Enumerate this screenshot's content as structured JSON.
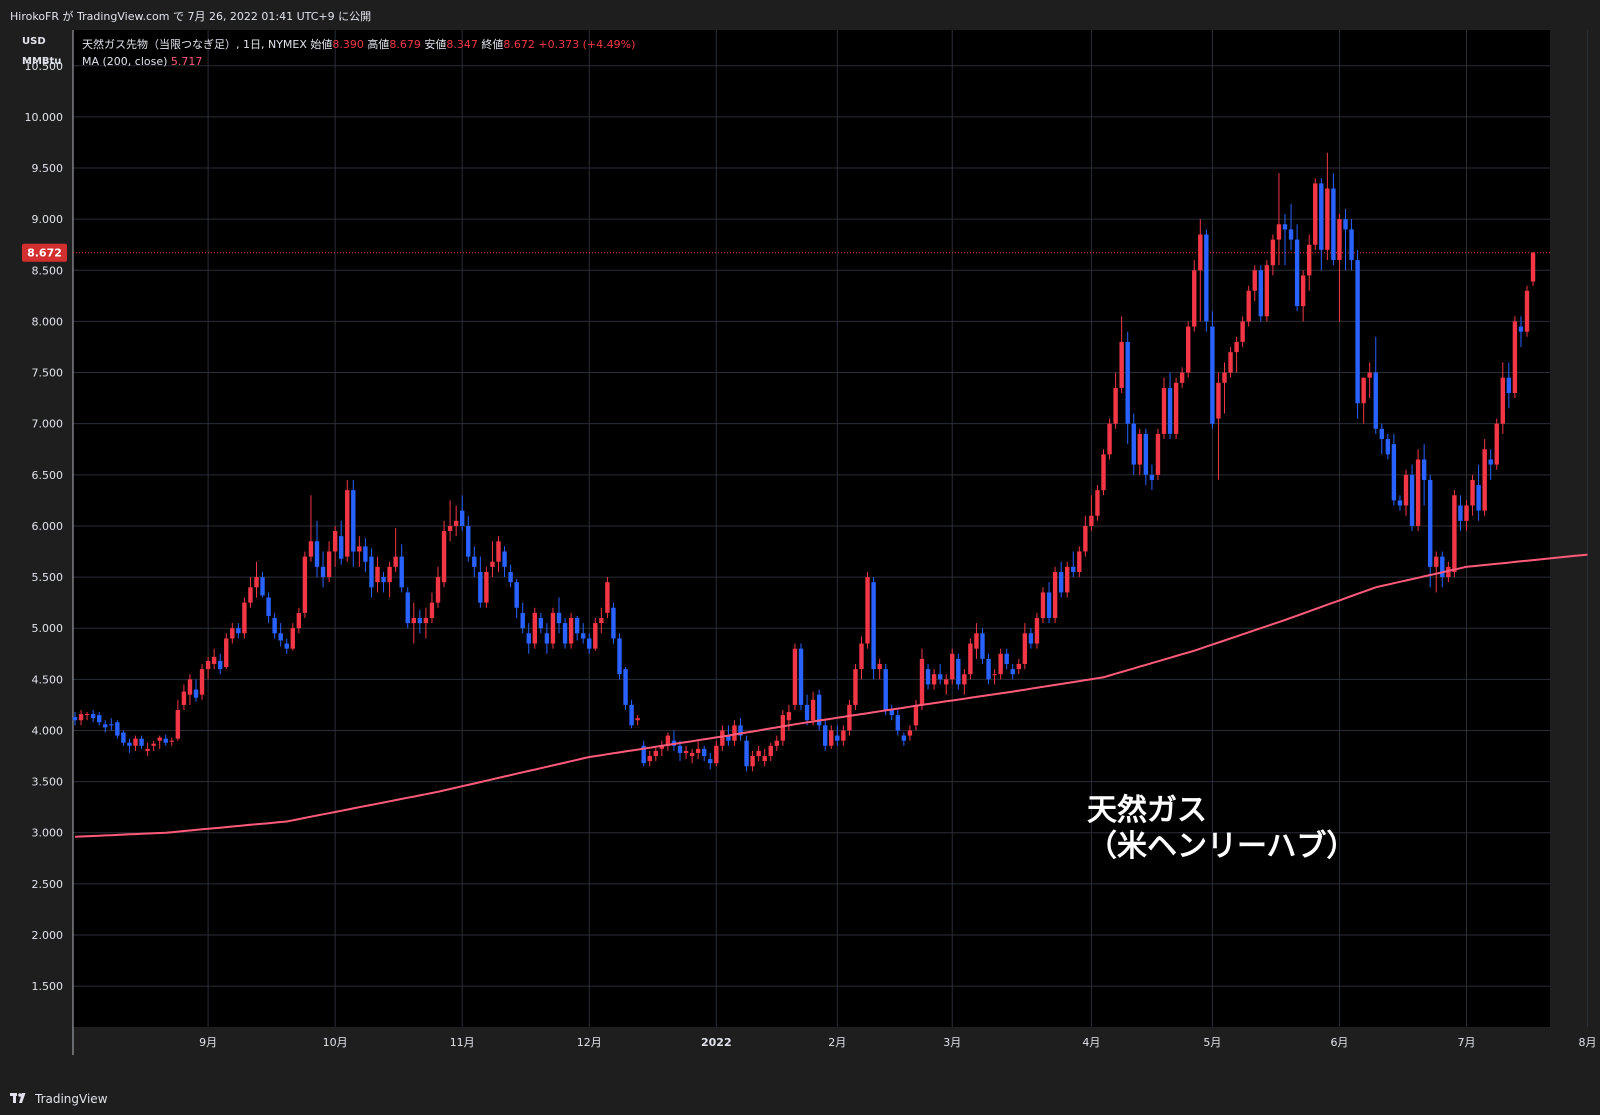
{
  "header": {
    "publish_line": "HirokoFR が TradingView.com で 7月 26, 2022 01:41 UTC+9 に公開"
  },
  "axis_units": {
    "line1": "USD",
    "line2": "MMBtu"
  },
  "legend": {
    "symbol": "天然ガス先物（当限つなぎ足）, 1日, NYMEX",
    "open_label": "始値",
    "open_value": "8.390",
    "high_label": "高値",
    "high_value": "8.679",
    "low_label": "安値",
    "low_value": "8.347",
    "close_label": "終値",
    "close_value": "8.672",
    "change": "+0.373 (+4.49%)",
    "ma_label": "MA (200, close)",
    "ma_value": "5.717"
  },
  "overlay": {
    "line1": "天然ガス",
    "line2": "（米ヘンリーハブ）"
  },
  "footer": {
    "brand": "TradingView"
  },
  "colors": {
    "background": "#000000",
    "frame": "#1e1e1e",
    "grid": "#2a2e39",
    "up": "#f23645",
    "down": "#2962ff",
    "ma": "#ff5a7a",
    "text": "#d1d4dc"
  },
  "chart_data": {
    "type": "candlestick",
    "ylim": [
      1.1,
      10.85
    ],
    "y_ticks": [
      "10.500",
      "10.000",
      "9.500",
      "9.000",
      "8.500",
      "8.000",
      "7.500",
      "7.000",
      "6.500",
      "6.000",
      "5.500",
      "5.000",
      "4.500",
      "4.000",
      "3.500",
      "3.000",
      "2.500",
      "2.000",
      "1.500"
    ],
    "x_ticks": [
      {
        "label": "9月",
        "i": 22
      },
      {
        "label": "10月",
        "i": 43
      },
      {
        "label": "11月",
        "i": 64
      },
      {
        "label": "12月",
        "i": 85
      },
      {
        "label": "2022",
        "i": 106
      },
      {
        "label": "2月",
        "i": 126
      },
      {
        "label": "3月",
        "i": 145
      },
      {
        "label": "4月",
        "i": 168
      },
      {
        "label": "5月",
        "i": 188
      },
      {
        "label": "6月",
        "i": 209
      },
      {
        "label": "7月",
        "i": 230
      },
      {
        "label": "8月",
        "i": 250
      }
    ],
    "current_price": "8.672",
    "candles": [
      [
        4.13,
        4.18,
        4.05,
        4.1
      ],
      [
        4.1,
        4.2,
        4.05,
        4.16
      ],
      [
        4.15,
        4.18,
        4.1,
        4.16
      ],
      [
        4.16,
        4.2,
        4.08,
        4.12
      ],
      [
        4.15,
        4.18,
        4.05,
        4.08
      ],
      [
        4.06,
        4.1,
        3.98,
        4.03
      ],
      [
        4.06,
        4.12,
        4.0,
        4.05
      ],
      [
        4.08,
        4.1,
        3.92,
        3.95
      ],
      [
        3.98,
        4.0,
        3.85,
        3.88
      ],
      [
        3.88,
        3.92,
        3.78,
        3.85
      ],
      [
        3.85,
        3.95,
        3.8,
        3.92
      ],
      [
        3.92,
        3.95,
        3.82,
        3.85
      ],
      [
        3.8,
        3.88,
        3.75,
        3.82
      ],
      [
        3.85,
        3.9,
        3.8,
        3.87
      ],
      [
        3.9,
        3.95,
        3.82,
        3.93
      ],
      [
        3.92,
        3.96,
        3.85,
        3.88
      ],
      [
        3.9,
        3.93,
        3.85,
        3.9
      ],
      [
        3.92,
        4.3,
        3.9,
        4.2
      ],
      [
        4.25,
        4.45,
        4.2,
        4.38
      ],
      [
        4.35,
        4.55,
        4.25,
        4.5
      ],
      [
        4.4,
        4.5,
        4.28,
        4.32
      ],
      [
        4.35,
        4.65,
        4.3,
        4.6
      ],
      [
        4.6,
        4.72,
        4.5,
        4.68
      ],
      [
        4.65,
        4.8,
        4.6,
        4.72
      ],
      [
        4.68,
        4.75,
        4.55,
        4.6
      ],
      [
        4.62,
        4.95,
        4.6,
        4.9
      ],
      [
        4.9,
        5.05,
        4.85,
        5.0
      ],
      [
        5.0,
        5.05,
        4.9,
        4.95
      ],
      [
        4.95,
        5.3,
        4.9,
        5.25
      ],
      [
        5.25,
        5.5,
        5.2,
        5.4
      ],
      [
        5.4,
        5.65,
        5.3,
        5.5
      ],
      [
        5.5,
        5.55,
        5.3,
        5.32
      ],
      [
        5.3,
        5.35,
        5.05,
        5.12
      ],
      [
        5.1,
        5.15,
        4.9,
        4.95
      ],
      [
        4.95,
        5.05,
        4.82,
        4.88
      ],
      [
        4.85,
        4.9,
        4.75,
        4.8
      ],
      [
        4.8,
        5.05,
        4.78,
        5.0
      ],
      [
        5.0,
        5.2,
        4.95,
        5.15
      ],
      [
        5.15,
        5.75,
        5.1,
        5.7
      ],
      [
        5.7,
        6.3,
        5.65,
        5.85
      ],
      [
        5.85,
        6.05,
        5.5,
        5.6
      ],
      [
        5.6,
        5.75,
        5.4,
        5.5
      ],
      [
        5.5,
        5.85,
        5.45,
        5.75
      ],
      [
        5.75,
        6.0,
        5.6,
        5.95
      ],
      [
        5.9,
        6.05,
        5.62,
        5.68
      ],
      [
        5.7,
        6.45,
        5.65,
        6.35
      ],
      [
        6.35,
        6.45,
        5.6,
        5.75
      ],
      [
        5.75,
        5.9,
        5.6,
        5.8
      ],
      [
        5.8,
        5.88,
        5.55,
        5.65
      ],
      [
        5.7,
        5.78,
        5.3,
        5.4
      ],
      [
        5.45,
        5.7,
        5.35,
        5.6
      ],
      [
        5.5,
        5.55,
        5.35,
        5.45
      ],
      [
        5.45,
        5.65,
        5.3,
        5.6
      ],
      [
        5.6,
        5.98,
        5.55,
        5.7
      ],
      [
        5.7,
        5.82,
        5.35,
        5.4
      ],
      [
        5.35,
        5.4,
        5.0,
        5.05
      ],
      [
        5.05,
        5.25,
        4.85,
        5.1
      ],
      [
        5.1,
        5.18,
        4.95,
        5.05
      ],
      [
        5.05,
        5.2,
        4.9,
        5.1
      ],
      [
        5.1,
        5.35,
        5.05,
        5.25
      ],
      [
        5.25,
        5.6,
        5.2,
        5.5
      ],
      [
        5.45,
        6.05,
        5.4,
        5.95
      ],
      [
        5.95,
        6.25,
        5.85,
        6.0
      ],
      [
        6.0,
        6.2,
        5.9,
        6.05
      ],
      [
        6.15,
        6.3,
        5.95,
        6.0
      ],
      [
        6.0,
        6.1,
        5.65,
        5.7
      ],
      [
        5.7,
        5.8,
        5.5,
        5.6
      ],
      [
        5.55,
        5.7,
        5.2,
        5.25
      ],
      [
        5.25,
        5.6,
        5.2,
        5.55
      ],
      [
        5.6,
        5.85,
        5.5,
        5.65
      ],
      [
        5.65,
        5.9,
        5.55,
        5.85
      ],
      [
        5.75,
        5.8,
        5.5,
        5.6
      ],
      [
        5.55,
        5.62,
        5.4,
        5.45
      ],
      [
        5.45,
        5.48,
        5.1,
        5.2
      ],
      [
        5.15,
        5.25,
        4.95,
        5.0
      ],
      [
        4.95,
        5.05,
        4.75,
        4.85
      ],
      [
        4.85,
        5.2,
        4.8,
        5.15
      ],
      [
        5.1,
        5.15,
        4.95,
        5.0
      ],
      [
        4.95,
        5.05,
        4.75,
        4.85
      ],
      [
        4.85,
        5.2,
        4.8,
        5.15
      ],
      [
        5.15,
        5.3,
        4.95,
        5.05
      ],
      [
        5.05,
        5.1,
        4.8,
        4.85
      ],
      [
        4.85,
        5.15,
        4.8,
        5.1
      ],
      [
        5.1,
        5.12,
        4.88,
        4.95
      ],
      [
        4.95,
        5.05,
        4.85,
        4.9
      ],
      [
        4.9,
        4.95,
        4.75,
        4.8
      ],
      [
        4.8,
        5.1,
        4.78,
        5.05
      ],
      [
        5.05,
        5.2,
        4.95,
        5.1
      ],
      [
        5.15,
        5.5,
        5.1,
        5.45
      ],
      [
        5.2,
        5.25,
        4.85,
        4.9
      ],
      [
        4.9,
        4.95,
        4.5,
        4.55
      ],
      [
        4.6,
        4.62,
        4.2,
        4.25
      ],
      [
        4.25,
        4.3,
        4.02,
        4.05
      ],
      [
        4.1,
        4.15,
        4.05,
        4.12
      ],
      [
        3.85,
        3.9,
        3.65,
        3.68
      ],
      [
        3.7,
        3.8,
        3.65,
        3.75
      ],
      [
        3.75,
        3.85,
        3.7,
        3.8
      ],
      [
        3.82,
        3.9,
        3.75,
        3.85
      ],
      [
        3.85,
        3.98,
        3.8,
        3.95
      ],
      [
        3.9,
        4.0,
        3.8,
        3.85
      ],
      [
        3.85,
        3.9,
        3.7,
        3.78
      ],
      [
        3.78,
        3.85,
        3.72,
        3.8
      ],
      [
        3.75,
        3.82,
        3.68,
        3.78
      ],
      [
        3.78,
        3.9,
        3.72,
        3.82
      ],
      [
        3.82,
        3.85,
        3.7,
        3.75
      ],
      [
        3.72,
        3.78,
        3.62,
        3.68
      ],
      [
        3.68,
        3.9,
        3.65,
        3.85
      ],
      [
        3.85,
        4.05,
        3.8,
        4.0
      ],
      [
        3.95,
        4.05,
        3.85,
        3.9
      ],
      [
        3.9,
        4.1,
        3.85,
        4.05
      ],
      [
        4.05,
        4.12,
        3.9,
        3.95
      ],
      [
        3.9,
        3.95,
        3.6,
        3.65
      ],
      [
        3.65,
        3.8,
        3.6,
        3.75
      ],
      [
        3.75,
        3.85,
        3.7,
        3.8
      ],
      [
        3.7,
        3.82,
        3.65,
        3.75
      ],
      [
        3.75,
        3.88,
        3.7,
        3.85
      ],
      [
        3.85,
        3.95,
        3.8,
        3.9
      ],
      [
        3.9,
        4.2,
        3.85,
        4.15
      ],
      [
        4.1,
        4.25,
        4.0,
        4.18
      ],
      [
        4.25,
        4.85,
        4.2,
        4.8
      ],
      [
        4.8,
        4.85,
        4.2,
        4.25
      ],
      [
        4.25,
        4.35,
        4.05,
        4.1
      ],
      [
        4.1,
        4.38,
        4.05,
        4.3
      ],
      [
        4.35,
        4.4,
        4.0,
        4.05
      ],
      [
        4.05,
        4.1,
        3.8,
        3.85
      ],
      [
        3.85,
        4.05,
        3.82,
        4.0
      ],
      [
        3.95,
        4.05,
        3.85,
        3.9
      ],
      [
        3.9,
        4.05,
        3.85,
        4.0
      ],
      [
        4.0,
        4.3,
        3.95,
        4.25
      ],
      [
        4.25,
        4.65,
        4.2,
        4.6
      ],
      [
        4.6,
        4.92,
        4.5,
        4.85
      ],
      [
        4.85,
        5.55,
        4.8,
        5.5
      ],
      [
        5.45,
        5.5,
        4.5,
        4.6
      ],
      [
        4.6,
        4.7,
        4.5,
        4.65
      ],
      [
        4.6,
        4.65,
        4.15,
        4.2
      ],
      [
        4.2,
        4.25,
        4.1,
        4.15
      ],
      [
        4.15,
        4.2,
        3.95,
        4.0
      ],
      [
        3.95,
        3.98,
        3.85,
        3.9
      ],
      [
        3.95,
        4.05,
        3.9,
        4.0
      ],
      [
        4.05,
        4.3,
        4.0,
        4.25
      ],
      [
        4.25,
        4.8,
        4.2,
        4.7
      ],
      [
        4.6,
        4.65,
        4.4,
        4.45
      ],
      [
        4.45,
        4.6,
        4.4,
        4.55
      ],
      [
        4.55,
        4.65,
        4.45,
        4.5
      ],
      [
        4.45,
        4.55,
        4.35,
        4.5
      ],
      [
        4.5,
        4.8,
        4.45,
        4.75
      ],
      [
        4.7,
        4.75,
        4.4,
        4.45
      ],
      [
        4.45,
        4.6,
        4.35,
        4.55
      ],
      [
        4.55,
        4.9,
        4.5,
        4.85
      ],
      [
        4.8,
        5.05,
        4.7,
        4.95
      ],
      [
        4.95,
        5.0,
        4.65,
        4.7
      ],
      [
        4.7,
        4.75,
        4.45,
        4.5
      ],
      [
        4.55,
        4.6,
        4.45,
        4.55
      ],
      [
        4.55,
        4.8,
        4.5,
        4.75
      ],
      [
        4.75,
        4.8,
        4.6,
        4.65
      ],
      [
        4.6,
        4.65,
        4.5,
        4.55
      ],
      [
        4.6,
        4.7,
        4.55,
        4.65
      ],
      [
        4.65,
        5.05,
        4.6,
        4.95
      ],
      [
        4.95,
        5.0,
        4.8,
        4.85
      ],
      [
        4.85,
        5.15,
        4.8,
        5.1
      ],
      [
        5.1,
        5.4,
        5.05,
        5.35
      ],
      [
        5.35,
        5.45,
        5.05,
        5.1
      ],
      [
        5.1,
        5.6,
        5.05,
        5.55
      ],
      [
        5.55,
        5.65,
        5.3,
        5.35
      ],
      [
        5.35,
        5.65,
        5.3,
        5.6
      ],
      [
        5.6,
        5.75,
        5.5,
        5.55
      ],
      [
        5.55,
        5.8,
        5.5,
        5.75
      ],
      [
        5.75,
        6.1,
        5.7,
        6.0
      ],
      [
        6.0,
        6.3,
        5.95,
        6.1
      ],
      [
        6.1,
        6.4,
        6.05,
        6.35
      ],
      [
        6.35,
        6.75,
        6.3,
        6.7
      ],
      [
        6.7,
        7.05,
        6.65,
        7.0
      ],
      [
        7.0,
        7.5,
        6.95,
        7.35
      ],
      [
        7.35,
        8.05,
        7.3,
        7.8
      ],
      [
        7.8,
        7.9,
        6.8,
        7.0
      ],
      [
        7.0,
        7.1,
        6.5,
        6.6
      ],
      [
        6.6,
        6.95,
        6.5,
        6.9
      ],
      [
        6.9,
        6.95,
        6.4,
        6.5
      ],
      [
        6.5,
        6.6,
        6.35,
        6.45
      ],
      [
        6.5,
        6.95,
        6.45,
        6.9
      ],
      [
        6.9,
        7.45,
        6.85,
        7.35
      ],
      [
        7.35,
        7.5,
        6.85,
        6.9
      ],
      [
        6.9,
        7.45,
        6.85,
        7.4
      ],
      [
        7.4,
        7.55,
        7.35,
        7.5
      ],
      [
        7.5,
        8.0,
        7.45,
        7.95
      ],
      [
        7.95,
        8.6,
        7.9,
        8.5
      ],
      [
        8.5,
        9.0,
        8.0,
        8.85
      ],
      [
        8.85,
        8.9,
        7.9,
        8.0
      ],
      [
        7.95,
        8.1,
        6.95,
        7.0
      ],
      [
        7.05,
        7.5,
        6.45,
        7.4
      ],
      [
        7.4,
        7.6,
        7.1,
        7.5
      ],
      [
        7.5,
        7.75,
        7.45,
        7.7
      ],
      [
        7.7,
        7.85,
        7.5,
        7.8
      ],
      [
        7.8,
        8.05,
        7.75,
        8.0
      ],
      [
        8.0,
        8.35,
        7.95,
        8.3
      ],
      [
        8.3,
        8.55,
        8.2,
        8.5
      ],
      [
        8.5,
        8.55,
        8.0,
        8.05
      ],
      [
        8.05,
        8.6,
        8.0,
        8.55
      ],
      [
        8.55,
        8.85,
        8.45,
        8.8
      ],
      [
        8.8,
        9.45,
        8.55,
        8.95
      ],
      [
        8.95,
        9.05,
        8.55,
        8.9
      ],
      [
        8.9,
        9.15,
        8.7,
        8.8
      ],
      [
        8.8,
        8.95,
        8.1,
        8.15
      ],
      [
        8.15,
        8.5,
        8.0,
        8.45
      ],
      [
        8.45,
        8.85,
        8.3,
        8.75
      ],
      [
        8.75,
        9.4,
        8.7,
        9.35
      ],
      [
        9.35,
        9.4,
        8.5,
        8.7
      ],
      [
        8.7,
        9.65,
        8.6,
        9.3
      ],
      [
        9.3,
        9.45,
        8.55,
        8.6
      ],
      [
        8.6,
        9.05,
        8.0,
        9.0
      ],
      [
        9.0,
        9.1,
        8.5,
        8.9
      ],
      [
        8.9,
        9.0,
        8.5,
        8.6
      ],
      [
        8.6,
        8.7,
        7.05,
        7.2
      ],
      [
        7.2,
        7.4,
        7.0,
        7.45
      ],
      [
        7.45,
        7.6,
        7.25,
        7.5
      ],
      [
        7.5,
        7.85,
        6.9,
        6.95
      ],
      [
        6.95,
        7.0,
        6.7,
        6.85
      ],
      [
        6.85,
        6.9,
        6.65,
        6.7
      ],
      [
        6.8,
        6.9,
        6.2,
        6.25
      ],
      [
        6.25,
        6.3,
        6.15,
        6.2
      ],
      [
        6.2,
        6.55,
        6.1,
        6.5
      ],
      [
        6.5,
        6.6,
        5.95,
        6.0
      ],
      [
        6.0,
        6.75,
        5.95,
        6.65
      ],
      [
        6.65,
        6.8,
        6.2,
        6.45
      ],
      [
        6.45,
        6.5,
        5.4,
        5.6
      ],
      [
        5.6,
        5.75,
        5.35,
        5.7
      ],
      [
        5.7,
        5.75,
        5.4,
        5.5
      ],
      [
        5.5,
        5.65,
        5.45,
        5.6
      ],
      [
        5.55,
        6.35,
        5.5,
        6.3
      ],
      [
        6.2,
        6.3,
        5.95,
        6.05
      ],
      [
        6.05,
        6.25,
        5.95,
        6.2
      ],
      [
        6.2,
        6.5,
        6.1,
        6.45
      ],
      [
        6.4,
        6.6,
        6.05,
        6.15
      ],
      [
        6.15,
        6.85,
        6.1,
        6.75
      ],
      [
        6.65,
        6.75,
        6.45,
        6.6
      ],
      [
        6.6,
        7.05,
        6.55,
        7.0
      ],
      [
        7.0,
        7.6,
        6.9,
        7.45
      ],
      [
        7.45,
        7.6,
        7.15,
        7.3
      ],
      [
        7.3,
        8.05,
        7.25,
        8.0
      ],
      [
        7.95,
        8.05,
        7.75,
        7.9
      ],
      [
        7.9,
        8.35,
        7.85,
        8.3
      ],
      [
        8.39,
        8.679,
        8.347,
        8.672
      ]
    ],
    "ma": [
      [
        0,
        2.96
      ],
      [
        15,
        3.0
      ],
      [
        35,
        3.11
      ],
      [
        60,
        3.4
      ],
      [
        85,
        3.74
      ],
      [
        108,
        3.95
      ],
      [
        120,
        4.07
      ],
      [
        140,
        4.25
      ],
      [
        155,
        4.38
      ],
      [
        170,
        4.52
      ],
      [
        185,
        4.78
      ],
      [
        200,
        5.08
      ],
      [
        215,
        5.4
      ],
      [
        230,
        5.6
      ],
      [
        250,
        5.72
      ]
    ]
  }
}
